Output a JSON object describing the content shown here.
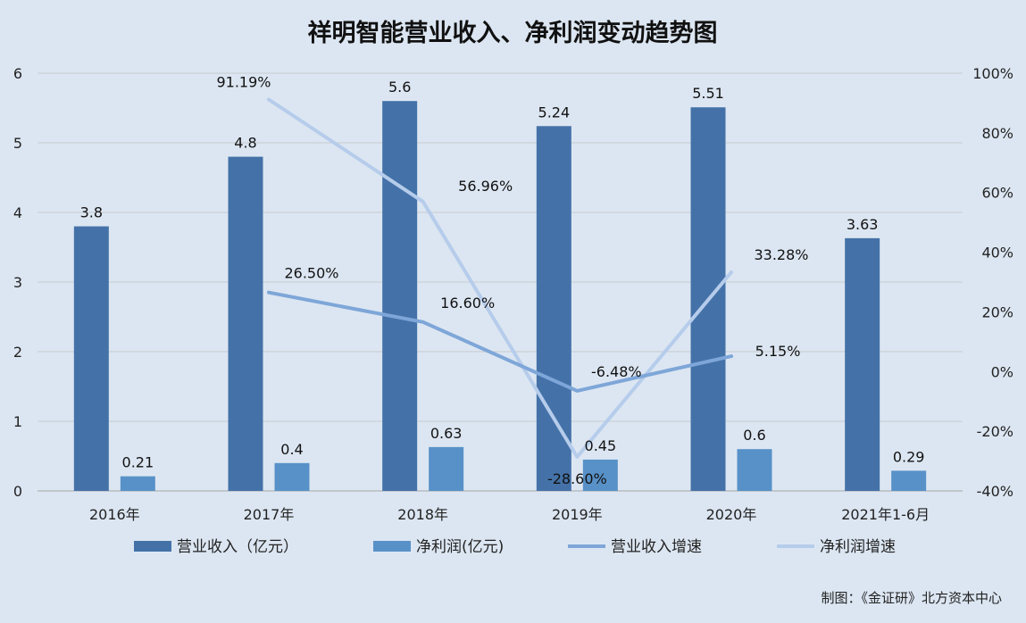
{
  "chart_data": {
    "type": "bar",
    "title": "祥明智能营业收入、净利润变动趋势图",
    "categories": [
      "2016年",
      "2017年",
      "2018年",
      "2019年",
      "2020年",
      "2021年1-6月"
    ],
    "left_axis": {
      "ylim": [
        0,
        6
      ],
      "ticks": [
        "0",
        "1",
        "2",
        "3",
        "4",
        "5",
        "6"
      ]
    },
    "right_axis": {
      "ylim": [
        -40,
        100
      ],
      "ticks": [
        "-40%",
        "-20%",
        "0%",
        "20%",
        "40%",
        "60%",
        "80%",
        "100%"
      ]
    },
    "grid": true,
    "legend_position": "bottom",
    "series": [
      {
        "name": "营业收入（亿元）",
        "kind": "bar",
        "axis": "left",
        "color": "#4472a8",
        "values": [
          3.8,
          4.8,
          5.6,
          5.24,
          5.51,
          3.63
        ],
        "labels": [
          "3.8",
          "4.8",
          "5.6",
          "5.24",
          "5.51",
          "3.63"
        ]
      },
      {
        "name": "净利润(亿元)",
        "kind": "bar",
        "axis": "left",
        "color": "#5891c8",
        "values": [
          0.21,
          0.4,
          0.63,
          0.45,
          0.6,
          0.29
        ],
        "labels": [
          "0.21",
          "0.4",
          "0.63",
          "0.45",
          "0.6",
          "0.29"
        ]
      },
      {
        "name": "营业收入增速",
        "kind": "line",
        "axis": "right",
        "color": "#7ea6d8",
        "values": [
          null,
          26.5,
          16.6,
          -6.48,
          5.15,
          null
        ],
        "labels": [
          "",
          "26.50%",
          "16.60%",
          "-6.48%",
          "5.15%",
          ""
        ]
      },
      {
        "name": "净利润增速",
        "kind": "line",
        "axis": "right",
        "color": "#b6cceb",
        "values": [
          null,
          91.19,
          56.96,
          -28.6,
          33.28,
          null
        ],
        "labels": [
          "",
          "91.19%",
          "56.96%",
          "-28.60%",
          "33.28%",
          ""
        ]
      }
    ]
  },
  "source_note": "制图：《金证研》北方资本中心"
}
